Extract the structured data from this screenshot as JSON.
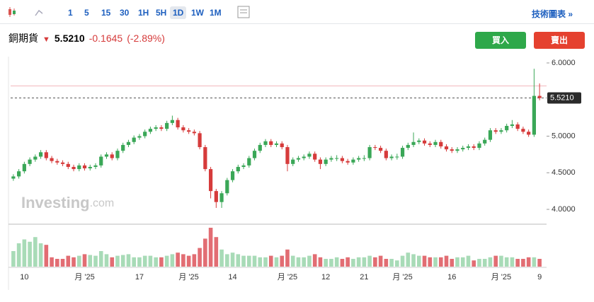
{
  "toolbar": {
    "intervals": [
      "1",
      "5",
      "15",
      "30",
      "1H",
      "5H",
      "1D",
      "1W",
      "1M"
    ],
    "active": "1D",
    "link": "技術圖表 »"
  },
  "header": {
    "name": "銅期貨",
    "price": "5.5210",
    "change": "-0.1645",
    "change_pct": "(-2.89%)"
  },
  "buttons": {
    "buy": "買入",
    "sell": "賣出"
  },
  "watermark": {
    "brand": "Investing",
    "suffix": ".com"
  },
  "chart_data": {
    "type": "candlestick",
    "categories": [
      null,
      null,
      "10",
      null,
      null,
      null,
      null,
      null,
      null,
      null,
      null,
      null,
      null,
      "月 '25",
      null,
      null,
      null,
      null,
      null,
      null,
      null,
      null,
      null,
      "17",
      null,
      null,
      null,
      null,
      null,
      null,
      null,
      null,
      "月 '25",
      null,
      null,
      null,
      null,
      null,
      null,
      null,
      "14",
      null,
      null,
      null,
      null,
      null,
      null,
      null,
      null,
      null,
      "月 '25",
      null,
      null,
      null,
      null,
      null,
      null,
      "12",
      null,
      null,
      null,
      null,
      null,
      null,
      "21",
      null,
      null,
      null,
      null,
      null,
      null,
      "月 '25",
      null,
      null,
      null,
      null,
      null,
      null,
      null,
      null,
      "16",
      null,
      null,
      null,
      null,
      null,
      null,
      null,
      null,
      "月 '25",
      null,
      null,
      null,
      null,
      null,
      null,
      "9"
    ],
    "ohlc": [
      [
        4.42,
        4.48,
        4.39,
        4.45
      ],
      [
        4.45,
        4.55,
        4.42,
        4.52
      ],
      [
        4.52,
        4.65,
        4.49,
        4.62
      ],
      [
        4.62,
        4.71,
        4.59,
        4.68
      ],
      [
        4.68,
        4.75,
        4.65,
        4.72
      ],
      [
        4.72,
        4.81,
        4.69,
        4.78
      ],
      [
        4.78,
        4.81,
        4.67,
        4.7
      ],
      [
        4.7,
        4.73,
        4.63,
        4.66
      ],
      [
        4.66,
        4.69,
        4.61,
        4.64
      ],
      [
        4.64,
        4.67,
        4.59,
        4.62
      ],
      [
        4.62,
        4.65,
        4.55,
        4.58
      ],
      [
        4.58,
        4.61,
        4.52,
        4.55
      ],
      [
        4.55,
        4.63,
        4.52,
        4.6
      ],
      [
        4.6,
        4.63,
        4.53,
        4.56
      ],
      [
        4.56,
        4.61,
        4.53,
        4.58
      ],
      [
        4.58,
        4.63,
        4.55,
        4.6
      ],
      [
        4.6,
        4.75,
        4.57,
        4.72
      ],
      [
        4.72,
        4.78,
        4.69,
        4.75
      ],
      [
        4.75,
        4.78,
        4.67,
        4.7
      ],
      [
        4.7,
        4.83,
        4.67,
        4.8
      ],
      [
        4.8,
        4.91,
        4.77,
        4.88
      ],
      [
        4.88,
        4.95,
        4.85,
        4.92
      ],
      [
        4.92,
        5.01,
        4.89,
        4.98
      ],
      [
        4.98,
        5.03,
        4.95,
        5.0
      ],
      [
        5.0,
        5.09,
        4.97,
        5.06
      ],
      [
        5.06,
        5.13,
        5.03,
        5.1
      ],
      [
        5.1,
        5.15,
        5.07,
        5.12
      ],
      [
        5.12,
        5.15,
        5.07,
        5.1
      ],
      [
        5.1,
        5.21,
        5.07,
        5.18
      ],
      [
        5.18,
        5.28,
        5.15,
        5.22
      ],
      [
        5.22,
        5.25,
        5.09,
        5.12
      ],
      [
        5.12,
        5.15,
        5.05,
        5.08
      ],
      [
        5.08,
        5.11,
        5.03,
        5.06
      ],
      [
        5.06,
        5.09,
        5.01,
        5.04
      ],
      [
        5.04,
        5.07,
        4.82,
        4.85
      ],
      [
        4.85,
        4.88,
        4.52,
        4.55
      ],
      [
        4.55,
        4.58,
        4.15,
        4.25
      ],
      [
        4.25,
        4.28,
        4.02,
        4.1
      ],
      [
        4.1,
        4.25,
        4.02,
        4.22
      ],
      [
        4.22,
        4.43,
        4.19,
        4.4
      ],
      [
        4.4,
        4.55,
        4.37,
        4.52
      ],
      [
        4.52,
        4.61,
        4.49,
        4.58
      ],
      [
        4.58,
        4.63,
        4.55,
        4.6
      ],
      [
        4.6,
        4.73,
        4.57,
        4.7
      ],
      [
        4.7,
        4.83,
        4.67,
        4.8
      ],
      [
        4.8,
        4.91,
        4.77,
        4.88
      ],
      [
        4.88,
        4.96,
        4.85,
        4.93
      ],
      [
        4.93,
        4.96,
        4.85,
        4.88
      ],
      [
        4.88,
        4.93,
        4.85,
        4.9
      ],
      [
        4.9,
        4.93,
        4.82,
        4.85
      ],
      [
        4.85,
        4.88,
        4.52,
        4.62
      ],
      [
        4.62,
        4.71,
        4.59,
        4.68
      ],
      [
        4.68,
        4.73,
        4.65,
        4.7
      ],
      [
        4.7,
        4.75,
        4.67,
        4.72
      ],
      [
        4.72,
        4.79,
        4.69,
        4.76
      ],
      [
        4.76,
        4.79,
        4.65,
        4.68
      ],
      [
        4.68,
        4.71,
        4.55,
        4.62
      ],
      [
        4.62,
        4.71,
        4.59,
        4.68
      ],
      [
        4.68,
        4.73,
        4.65,
        4.7
      ],
      [
        4.7,
        4.74,
        4.66,
        4.7
      ],
      [
        4.7,
        4.73,
        4.63,
        4.66
      ],
      [
        4.66,
        4.69,
        4.61,
        4.64
      ],
      [
        4.64,
        4.71,
        4.61,
        4.68
      ],
      [
        4.68,
        4.73,
        4.65,
        4.7
      ],
      [
        4.7,
        4.74,
        4.66,
        4.7
      ],
      [
        4.7,
        4.88,
        4.67,
        4.85
      ],
      [
        4.85,
        4.88,
        4.81,
        4.84
      ],
      [
        4.84,
        4.87,
        4.77,
        4.8
      ],
      [
        4.8,
        4.83,
        4.67,
        4.7
      ],
      [
        4.7,
        4.75,
        4.67,
        4.72
      ],
      [
        4.72,
        4.76,
        4.68,
        4.72
      ],
      [
        4.72,
        4.87,
        4.69,
        4.84
      ],
      [
        4.84,
        4.91,
        4.81,
        4.88
      ],
      [
        4.88,
        5.05,
        4.85,
        4.92
      ],
      [
        4.92,
        4.97,
        4.89,
        4.94
      ],
      [
        4.94,
        4.97,
        4.87,
        4.9
      ],
      [
        4.9,
        4.93,
        4.85,
        4.88
      ],
      [
        4.88,
        4.95,
        4.85,
        4.92
      ],
      [
        4.92,
        4.95,
        4.83,
        4.86
      ],
      [
        4.86,
        4.89,
        4.79,
        4.82
      ],
      [
        4.82,
        4.85,
        4.77,
        4.8
      ],
      [
        4.8,
        4.85,
        4.77,
        4.82
      ],
      [
        4.82,
        4.87,
        4.79,
        4.84
      ],
      [
        4.84,
        4.89,
        4.81,
        4.86
      ],
      [
        4.86,
        4.89,
        4.81,
        4.84
      ],
      [
        4.84,
        4.93,
        4.81,
        4.9
      ],
      [
        4.9,
        4.98,
        4.87,
        4.95
      ],
      [
        4.95,
        5.11,
        4.92,
        5.08
      ],
      [
        5.08,
        5.11,
        5.03,
        5.06
      ],
      [
        5.06,
        5.11,
        5.03,
        5.08
      ],
      [
        5.08,
        5.17,
        5.05,
        5.14
      ],
      [
        5.14,
        5.22,
        5.11,
        5.16
      ],
      [
        5.16,
        5.19,
        5.07,
        5.1
      ],
      [
        5.1,
        5.13,
        5.03,
        5.06
      ],
      [
        5.06,
        5.09,
        4.99,
        5.02
      ],
      [
        5.02,
        5.92,
        4.99,
        5.55
      ],
      [
        5.55,
        5.72,
        5.49,
        5.521
      ]
    ],
    "volume": [
      20,
      30,
      35,
      32,
      38,
      30,
      28,
      12,
      10,
      10,
      14,
      12,
      14,
      16,
      15,
      14,
      20,
      16,
      12,
      14,
      15,
      16,
      12,
      12,
      14,
      14,
      12,
      12,
      14,
      16,
      18,
      16,
      14,
      16,
      24,
      36,
      50,
      38,
      22,
      16,
      18,
      16,
      14,
      14,
      14,
      12,
      12,
      14,
      12,
      14,
      22,
      14,
      12,
      12,
      14,
      16,
      12,
      10,
      10,
      12,
      10,
      12,
      10,
      12,
      12,
      14,
      12,
      14,
      10,
      10,
      8,
      14,
      18,
      16,
      14,
      14,
      12,
      12,
      12,
      14,
      10,
      12,
      12,
      14,
      8,
      10,
      10,
      12,
      14,
      14,
      12,
      12,
      10,
      10,
      12,
      12,
      10
    ],
    "ylim": [
      3.807,
      6.106
    ],
    "yticks": [
      {
        "value": 4,
        "label": "4.0000"
      },
      {
        "value": 4.5,
        "label": "4.5000"
      },
      {
        "value": 5,
        "label": "5.0000"
      },
      {
        "value": 6,
        "label": "6.0000"
      }
    ],
    "last_price": {
      "value": 5.521,
      "label": "5.5210"
    },
    "prev_close": 5.6855,
    "grid": false,
    "up_color": "#3aa757",
    "down_color": "#d63b3b",
    "volume_up_color": "#a8dbb7",
    "volume_down_color": "#e26d73"
  }
}
